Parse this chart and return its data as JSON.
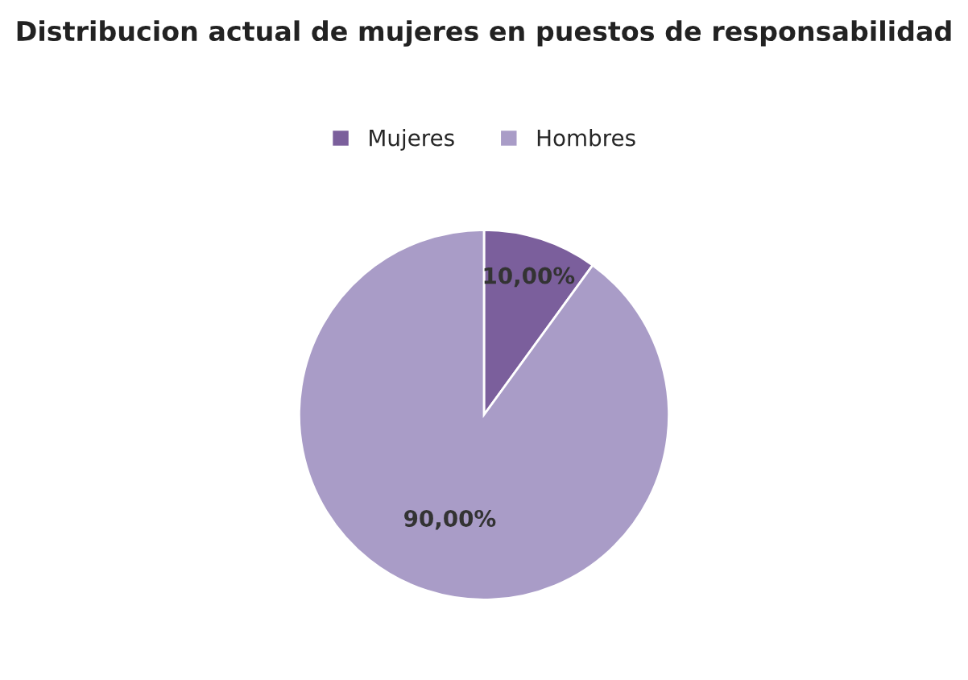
{
  "chart_data": {
    "type": "pie",
    "title": "Distribucion actual de mujeres en puestos de responsabilidad",
    "categories": [
      "Mujeres",
      "Hombres"
    ],
    "values": [
      10,
      90
    ],
    "colors": [
      "#7b5f9c",
      "#a99cc7"
    ],
    "value_labels": [
      "10,00%",
      "90,00%"
    ],
    "legend": "top"
  }
}
